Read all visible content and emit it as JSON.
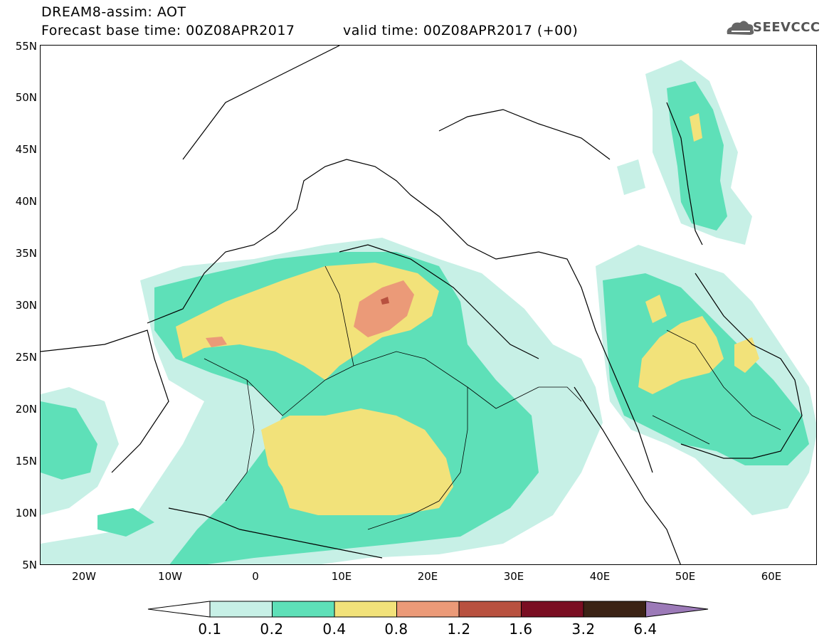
{
  "header": {
    "title_line1": "DREAM8-assim: AOT",
    "title_line2": "Forecast base time: 00Z08APR2017",
    "valid_time": "valid time: 00Z08APR2017 (+00)",
    "logo_text": "SEEVCCC"
  },
  "axes": {
    "lat_labels": [
      "55N",
      "50N",
      "45N",
      "40N",
      "35N",
      "30N",
      "25N",
      "20N",
      "15N",
      "10N",
      "5N"
    ],
    "lon_labels": [
      "20W",
      "10W",
      "0",
      "10E",
      "20E",
      "30E",
      "40E",
      "50E",
      "60E"
    ]
  },
  "colorbar": {
    "labels": [
      "0.1",
      "0.2",
      "0.4",
      "0.8",
      "1.2",
      "1.6",
      "3.2",
      "6.4"
    ],
    "colors": [
      "#ffffff",
      "#c7f0e6",
      "#5ee0b8",
      "#f2e27a",
      "#eb9a78",
      "#b8513f",
      "#7a0e22",
      "#3b2315",
      "#9c7ab8"
    ]
  },
  "colors": {
    "level1": "#c7f0e6",
    "level2": "#5ee0b8",
    "level3": "#f2e27a",
    "level4": "#eb9a78",
    "level5": "#b8513f"
  }
}
